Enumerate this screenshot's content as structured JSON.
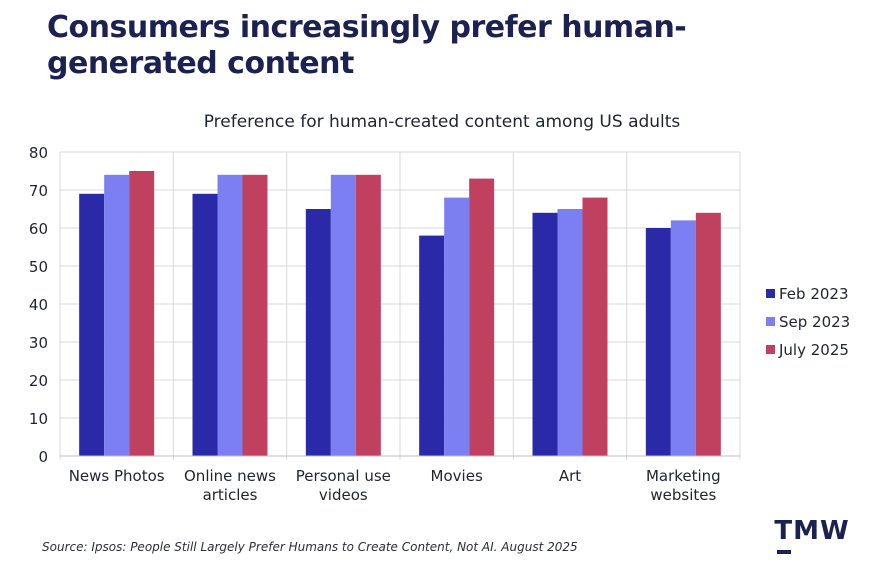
{
  "headline": "Consumers increasingly prefer human-generated content",
  "source": "Source: Ipsos: People Still Largely Prefer Humans to Create Content, Not AI. August 2025",
  "logo": "TMW",
  "colors": {
    "background": "#ffffff",
    "headline": "#1b2150",
    "grid": "#d9d9d9",
    "axis_text": "#1f2430"
  },
  "chart_data": {
    "type": "bar",
    "title": "Preference for human-created content among US adults",
    "categories": [
      [
        "News Photos"
      ],
      [
        "Online news",
        "articles"
      ],
      [
        "Personal use",
        "videos"
      ],
      [
        "Movies"
      ],
      [
        "Art"
      ],
      [
        "Marketing",
        "websites"
      ]
    ],
    "series": [
      {
        "name": "Feb 2023",
        "color": "#2a2aa8",
        "values": [
          69,
          69,
          65,
          58,
          64,
          60
        ]
      },
      {
        "name": "Sep 2023",
        "color": "#7b7ff2",
        "values": [
          74,
          74,
          74,
          68,
          65,
          62
        ]
      },
      {
        "name": "July 2025",
        "color": "#c0415f",
        "values": [
          75,
          74,
          74,
          73,
          68,
          64
        ]
      }
    ],
    "ylim": [
      0,
      80
    ],
    "yticks": [
      0,
      10,
      20,
      30,
      40,
      50,
      60,
      70,
      80
    ],
    "grid": true,
    "legend_position": "right"
  }
}
